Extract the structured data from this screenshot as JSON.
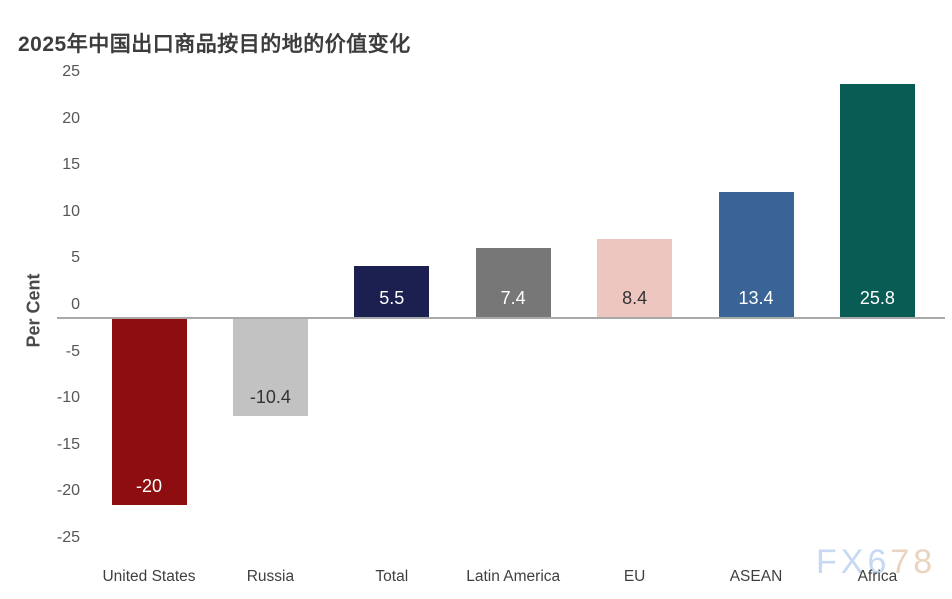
{
  "title": "2025年中国出口商品按目的地的价值变化",
  "watermark": {
    "part1": "FX6",
    "part2": "78"
  },
  "chart_data": {
    "type": "bar",
    "title": "2025年中国出口商品按目的地的价值变化",
    "categories": [
      "United States",
      "Russia",
      "Total",
      "Latin America",
      "EU",
      "ASEAN",
      "Africa"
    ],
    "values": [
      -20,
      -10.4,
      5.5,
      7.4,
      8.4,
      13.4,
      25.8
    ],
    "value_labels": [
      "-20",
      "-10.4",
      "5.5",
      "7.4",
      "8.4",
      "13.4",
      "25.8"
    ],
    "bar_colors": [
      "#8e0d11",
      "#c2c2c2",
      "#1b2050",
      "#777777",
      "#edc6c0",
      "#3a6495",
      "#095c54"
    ],
    "value_label_colors": [
      "#ffffff",
      "#333333",
      "#ffffff",
      "#ffffff",
      "#333333",
      "#ffffff",
      "#ffffff"
    ],
    "xlabel": "",
    "ylabel": "Per Cent",
    "ylim": [
      -25,
      25
    ],
    "yticks": [
      25,
      20,
      15,
      10,
      5,
      0,
      -5,
      -10,
      -15,
      -20,
      -25
    ],
    "grid": false,
    "legend": false,
    "zero_line_color": "#a9a9a9",
    "background_color": "#ffffff"
  }
}
